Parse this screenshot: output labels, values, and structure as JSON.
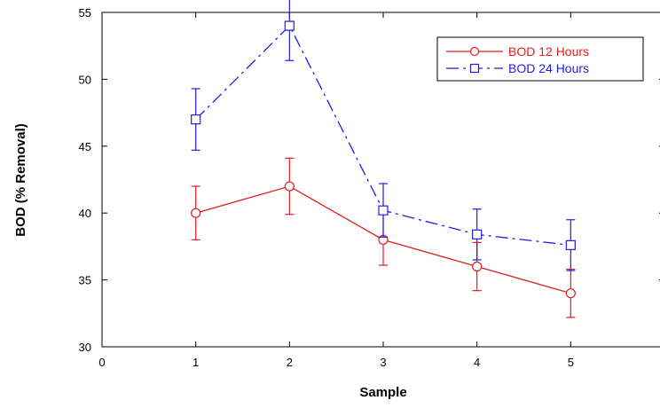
{
  "chart_data": {
    "type": "line",
    "xlabel": "Sample",
    "ylabel": "BOD (% Removal)",
    "xlim": [
      0,
      6
    ],
    "ylim": [
      30,
      55
    ],
    "xticks": [
      0,
      1,
      2,
      3,
      4,
      5
    ],
    "yticks": [
      30,
      35,
      40,
      45,
      50,
      55
    ],
    "x": [
      1,
      2,
      3,
      4,
      5
    ],
    "grid": false,
    "legend_position": "top-right",
    "series": [
      {
        "name": "BOD 12 Hours",
        "values": [
          40.0,
          42.0,
          38.0,
          36.0,
          34.0
        ],
        "error": [
          2.0,
          2.1,
          1.9,
          1.8,
          1.8
        ],
        "color": "#e11e1e",
        "marker": "circle",
        "line_style": "solid"
      },
      {
        "name": "BOD 24 Hours",
        "values": [
          47.0,
          54.0,
          40.2,
          38.4,
          37.6
        ],
        "error": [
          2.3,
          2.6,
          2.0,
          1.9,
          1.9
        ],
        "color": "#1e1ee1",
        "marker": "square",
        "line_style": "dashdot"
      }
    ]
  }
}
